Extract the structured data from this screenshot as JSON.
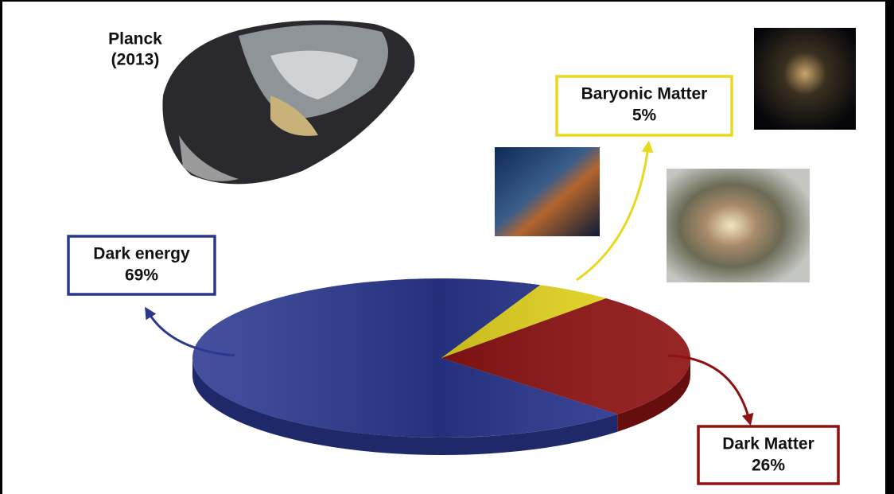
{
  "chart_data": {
    "type": "pie",
    "title": "Planck",
    "subtitle": "(2013)",
    "categories": [
      "Dark energy",
      "Baryonic Matter",
      "Dark Matter"
    ],
    "values": [
      69,
      5,
      26
    ],
    "value_labels": [
      "69%",
      "5%",
      "26%"
    ],
    "colors": [
      "#2b3891",
      "#e8d820",
      "#8e1212"
    ]
  }
}
